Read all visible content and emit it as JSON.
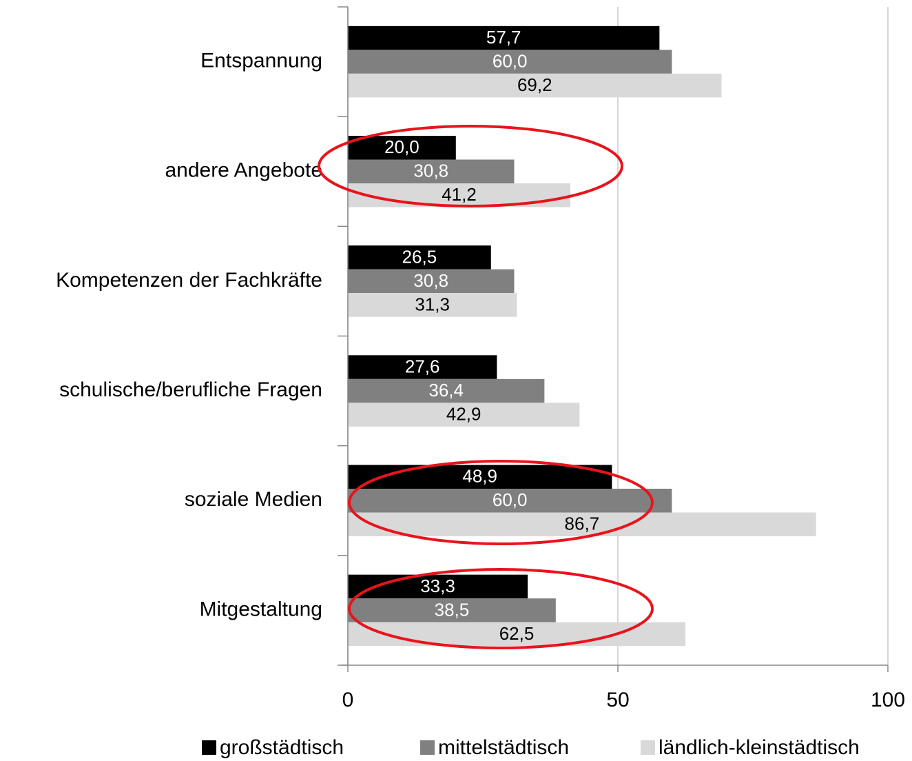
{
  "chart_data": {
    "type": "hbar",
    "categories": [
      "Entspannung",
      "andere Angebote",
      "Kompetenzen der Fachkräfte",
      "schulische/berufliche Fragen",
      "soziale Medien",
      "Mitgestaltung"
    ],
    "series": [
      {
        "name": "großstädtisch",
        "color": "#000000",
        "label_color": "#ffffff",
        "values": [
          57.7,
          20.0,
          26.5,
          27.6,
          48.9,
          33.3
        ],
        "value_labels": [
          "57,7",
          "20,0",
          "26,5",
          "27,6",
          "48,9",
          "33,3"
        ]
      },
      {
        "name": "mittelstädtisch",
        "color": "#808080",
        "label_color": "#ffffff",
        "values": [
          60.0,
          30.8,
          30.8,
          36.4,
          60.0,
          38.5
        ],
        "value_labels": [
          "60,0",
          "30,8",
          "30,8",
          "36,4",
          "60,0",
          "38,5"
        ]
      },
      {
        "name": "ländlich-kleinstädtisch",
        "color": "#d9d9d9",
        "label_color": "#000000",
        "values": [
          69.2,
          41.2,
          31.3,
          42.9,
          86.7,
          62.5
        ],
        "value_labels": [
          "69,2",
          "41,2",
          "31,3",
          "42,9",
          "86,7",
          "62,5"
        ]
      }
    ],
    "xlim": [
      0,
      100
    ],
    "xticks": [
      0,
      50,
      100
    ],
    "grid": true,
    "legend": "bottom"
  }
}
